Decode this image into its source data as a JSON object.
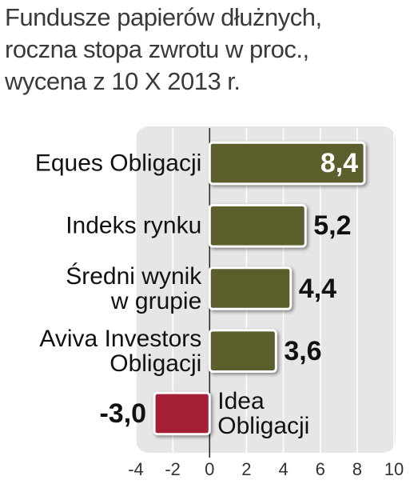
{
  "chart_data": {
    "type": "bar",
    "orientation": "horizontal",
    "title": "Fundusze papierów dłużnych,\nroczna stopa zwrotu w proc.,\nwycena z 10 X 2013 r.",
    "categories": [
      "Eques Obligacji",
      "Indeks rynku",
      "Średni wynik\nw grupie",
      "Aviva Investors\nObligacji",
      "Idea\nObligacji"
    ],
    "values": [
      8.4,
      5.2,
      4.4,
      3.6,
      -3.0
    ],
    "value_labels": [
      "8,4",
      "5,2",
      "4,4",
      "3,6",
      "-3,0"
    ],
    "colors": [
      "#5c5f2b",
      "#5c5f2b",
      "#5c5f2b",
      "#5c5f2b",
      "#a51f36"
    ],
    "xlim": [
      -4,
      10
    ],
    "xticks": [
      -4,
      -2,
      0,
      2,
      4,
      6,
      8,
      10
    ],
    "grid": true
  }
}
